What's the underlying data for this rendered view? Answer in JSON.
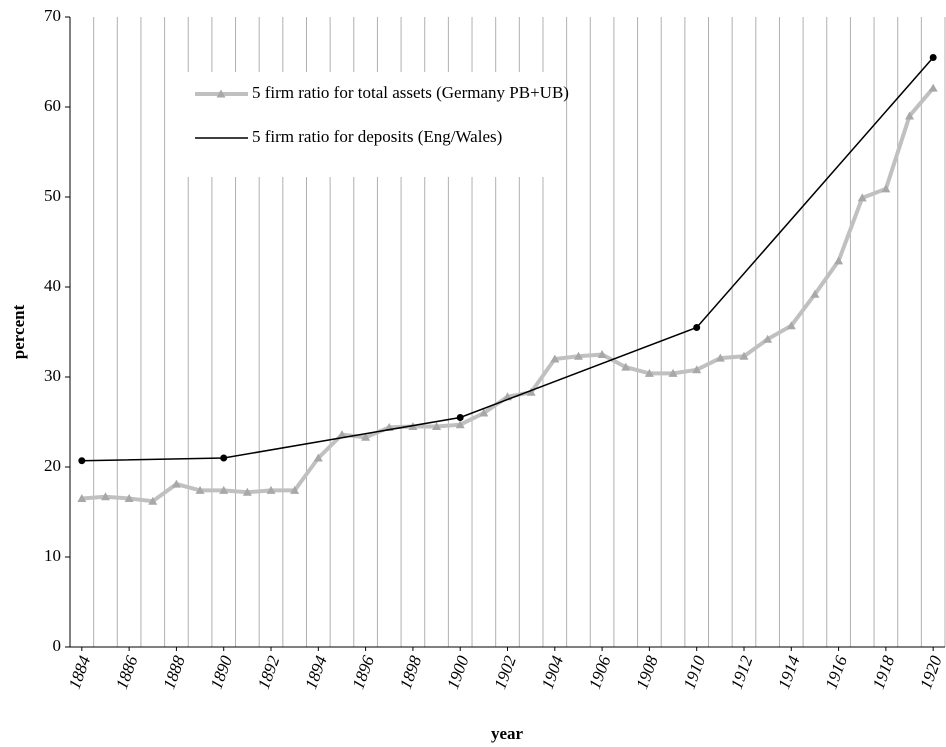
{
  "chart_data": {
    "type": "line",
    "x_label": "year",
    "y_label": "percent",
    "x": [
      1884,
      1885,
      1886,
      1887,
      1888,
      1889,
      1890,
      1891,
      1892,
      1893,
      1894,
      1895,
      1896,
      1897,
      1898,
      1899,
      1900,
      1901,
      1902,
      1903,
      1904,
      1905,
      1906,
      1907,
      1908,
      1909,
      1910,
      1911,
      1912,
      1913,
      1914,
      1915,
      1916,
      1917,
      1918,
      1919,
      1920
    ],
    "series": [
      {
        "name": "5 firm ratio for total assets (Germany PB+UB)",
        "color": "#c0c0c0",
        "marker": "triangle",
        "values": [
          16.5,
          16.7,
          16.5,
          16.2,
          18.1,
          17.4,
          17.4,
          17.2,
          17.4,
          17.4,
          21.0,
          23.6,
          23.3,
          24.4,
          24.5,
          24.5,
          24.7,
          26.0,
          27.8,
          28.3,
          32.0,
          32.3,
          32.5,
          31.1,
          30.4,
          30.4,
          30.8,
          32.1,
          32.3,
          34.2,
          35.7,
          39.2,
          42.9,
          49.9,
          50.9,
          59.0,
          62.1
        ]
      },
      {
        "name": "5 firm ratio for deposits (Eng/Wales)",
        "color": "#000000",
        "marker": "circle",
        "x": [
          1884,
          1890,
          1900,
          1910,
          1920
        ],
        "values": [
          20.7,
          21.0,
          25.5,
          35.5,
          65.5
        ]
      }
    ],
    "xlim": [
      1883.5,
      1920.5
    ],
    "xticks": [
      1884,
      1886,
      1888,
      1890,
      1892,
      1894,
      1896,
      1898,
      1900,
      1902,
      1904,
      1906,
      1908,
      1910,
      1912,
      1914,
      1916,
      1918,
      1920
    ],
    "ylim": [
      0,
      70
    ],
    "yticks": [
      0,
      10,
      20,
      30,
      40,
      50,
      60,
      70
    ],
    "grid": "x",
    "legend": "upper left"
  }
}
